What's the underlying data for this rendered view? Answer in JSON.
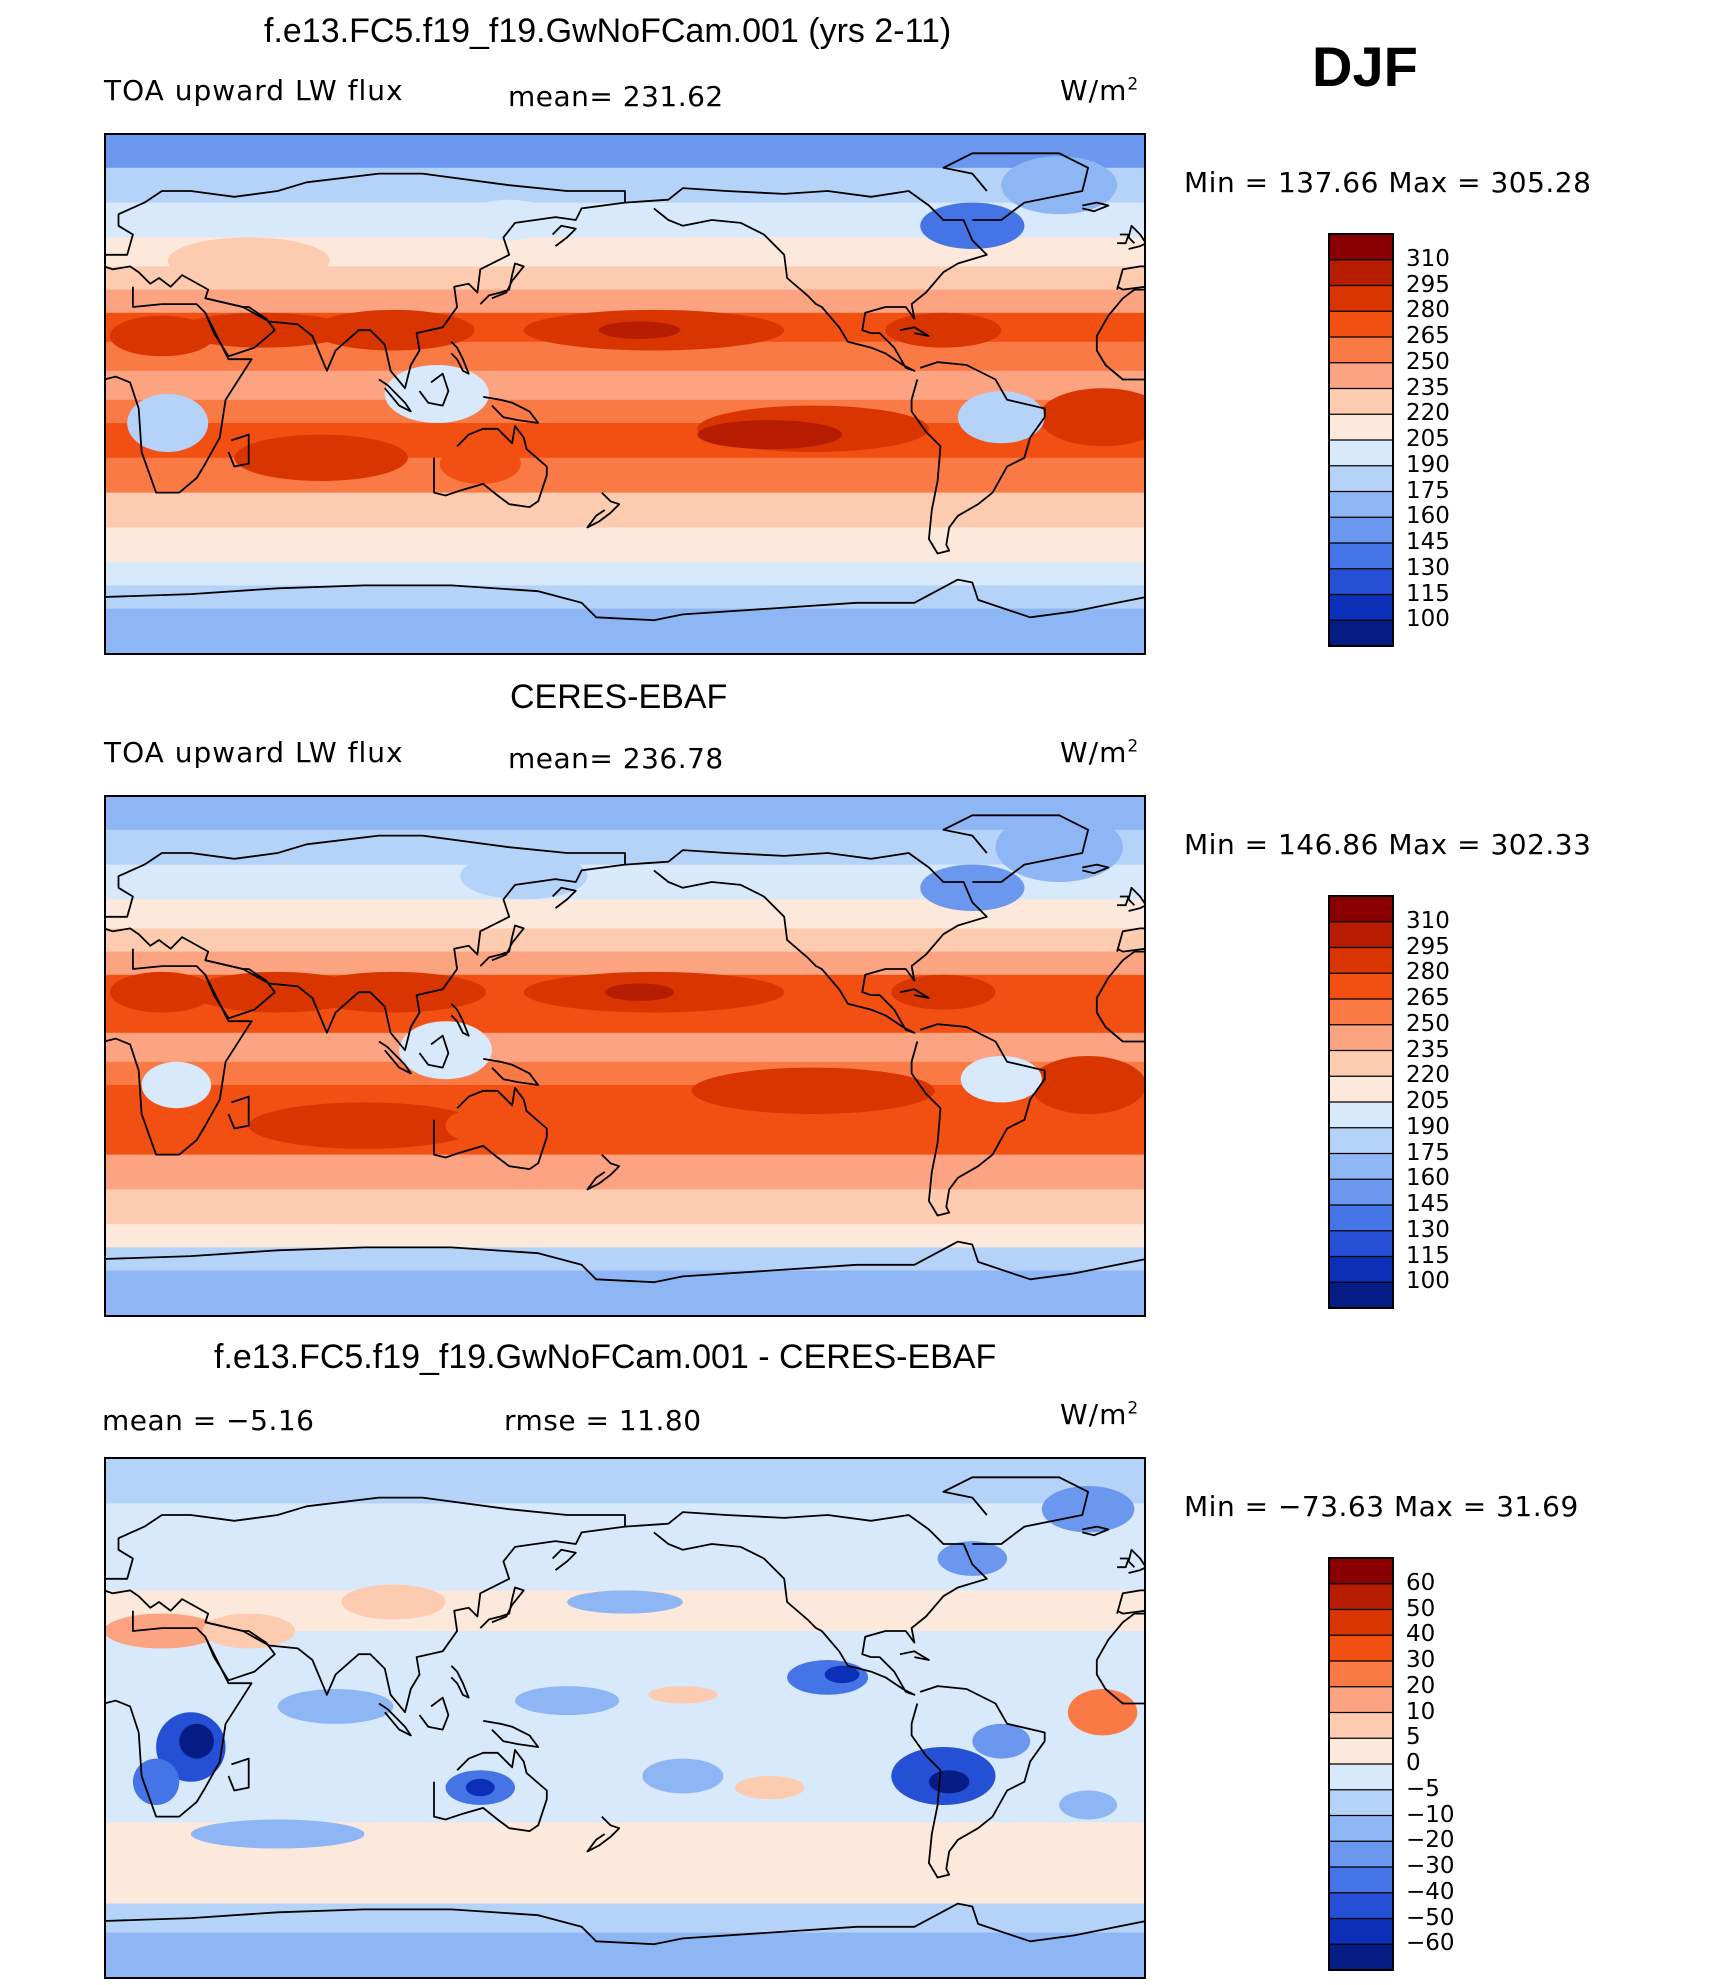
{
  "season": "DJF",
  "levels_main": [
    310,
    295,
    280,
    265,
    250,
    235,
    220,
    205,
    190,
    175,
    160,
    145,
    130,
    115,
    100
  ],
  "levels_diff": [
    "60",
    "50",
    "40",
    "30",
    "20",
    "10",
    "5",
    "0",
    "−5",
    "−10",
    "−20",
    "−30",
    "−40",
    "−50",
    "−60"
  ],
  "colors_main": [
    "#8a0000",
    "#b51c00",
    "#d93500",
    "#f24f12",
    "#fa7a45",
    "#fca381",
    "#fdcbb0",
    "#fde9dc",
    "#d8e9fb",
    "#b5d2f9",
    "#8eb6f5",
    "#6b97ef",
    "#4574e6",
    "#2550d6",
    "#0b2fb6",
    "#061c85"
  ],
  "colors_diff": [
    "#8a0000",
    "#b51c00",
    "#d93500",
    "#f24f12",
    "#fa7a45",
    "#fca381",
    "#fdcbb0",
    "#fde9dc",
    "#d8e9fb",
    "#b5d2f9",
    "#8eb6f5",
    "#6b97ef",
    "#4574e6",
    "#2550d6",
    "#0b2fb6",
    "#061c85"
  ],
  "panels": [
    {
      "title": "f.e13.FC5.f19_f19.GwNoFCam.001 (yrs 2-11)",
      "left_label": "TOA upward LW flux",
      "mid_label": "mean=  231.62",
      "units": "W/m",
      "units_sup": "2",
      "minmax": "Min  =  137.66  Max  =  305.28"
    },
    {
      "title": "CERES-EBAF",
      "left_label": "TOA upward LW flux",
      "mid_label": "mean=  236.78",
      "units": "W/m",
      "units_sup": "2",
      "minmax": "Min  =  146.86  Max  =  302.33"
    },
    {
      "title": "f.e13.FC5.f19_f19.GwNoFCam.001 - CERES-EBAF",
      "left_label": "mean  =    −5.16",
      "mid_label": "rmse  =    11.80",
      "units": "W/m",
      "units_sup": "2",
      "minmax": "Min  =  −73.63  Max  =    31.69"
    }
  ]
}
